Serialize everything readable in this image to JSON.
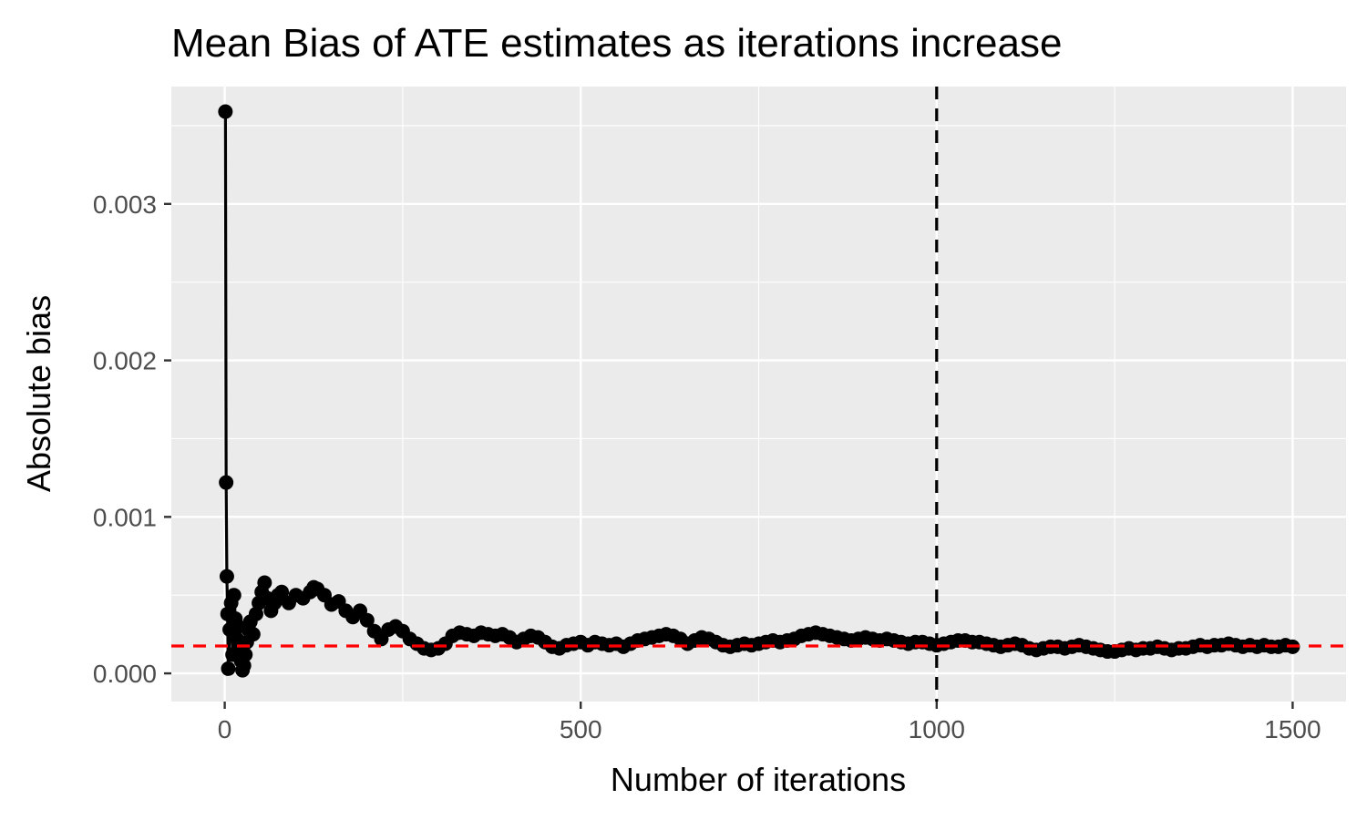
{
  "chart_data": {
    "type": "line",
    "title": "Mean Bias of ATE estimates as iterations increase",
    "xlabel": "Number of iterations",
    "ylabel": "Absolute bias",
    "xlim": [
      -75,
      1575
    ],
    "ylim": [
      -0.00018,
      0.00375
    ],
    "x_ticks": [
      {
        "value": 0,
        "label": "0"
      },
      {
        "value": 500,
        "label": "500"
      },
      {
        "value": 1000,
        "label": "1000"
      },
      {
        "value": 1500,
        "label": "1500"
      }
    ],
    "y_ticks": [
      {
        "value": 0.0,
        "label": "0.000"
      },
      {
        "value": 0.001,
        "label": "0.001"
      },
      {
        "value": 0.002,
        "label": "0.002"
      },
      {
        "value": 0.003,
        "label": "0.003"
      }
    ],
    "grid": true,
    "markers": true,
    "reference_lines": [
      {
        "orientation": "vertical",
        "value": 1000,
        "color": "#000000",
        "style": "dashed"
      },
      {
        "orientation": "horizontal",
        "value": 0.000175,
        "color": "#ff0000",
        "style": "dashed"
      }
    ],
    "series": [
      {
        "color": "#000000",
        "points": [
          [
            1,
            0.00359
          ],
          [
            2,
            0.00122
          ],
          [
            3,
            0.00062
          ],
          [
            4,
            0.00038
          ],
          [
            5,
            3e-05
          ],
          [
            7,
            0.00028
          ],
          [
            9,
            0.00045
          ],
          [
            11,
            0.00012
          ],
          [
            13,
            0.0005
          ],
          [
            15,
            0.00035
          ],
          [
            17,
            0.00022
          ],
          [
            19,
            0.0003
          ],
          [
            21,
            0.00015
          ],
          [
            23,
            8e-05
          ],
          [
            25,
            2e-05
          ],
          [
            27,
            5e-05
          ],
          [
            29,
            0.00012
          ],
          [
            31,
            0.0002
          ],
          [
            33,
            0.00028
          ],
          [
            36,
            0.00033
          ],
          [
            40,
            0.00025
          ],
          [
            44,
            0.00038
          ],
          [
            48,
            0.00045
          ],
          [
            52,
            0.00052
          ],
          [
            56,
            0.00058
          ],
          [
            60,
            0.00048
          ],
          [
            65,
            0.0004
          ],
          [
            70,
            0.00045
          ],
          [
            75,
            0.0005
          ],
          [
            80,
            0.00052
          ],
          [
            90,
            0.00045
          ],
          [
            100,
            0.0005
          ],
          [
            110,
            0.00048
          ],
          [
            120,
            0.00052
          ],
          [
            125,
            0.00055
          ],
          [
            130,
            0.00054
          ],
          [
            140,
            0.0005
          ],
          [
            150,
            0.00044
          ],
          [
            160,
            0.00046
          ],
          [
            170,
            0.0004
          ],
          [
            180,
            0.00036
          ],
          [
            190,
            0.0004
          ],
          [
            200,
            0.00034
          ],
          [
            210,
            0.00027
          ],
          [
            220,
            0.00022
          ],
          [
            230,
            0.00028
          ],
          [
            240,
            0.0003
          ],
          [
            250,
            0.00027
          ],
          [
            260,
            0.00022
          ],
          [
            270,
            0.00019
          ],
          [
            280,
            0.00016
          ],
          [
            290,
            0.00015
          ],
          [
            300,
            0.00016
          ],
          [
            310,
            0.00019
          ],
          [
            320,
            0.00024
          ],
          [
            330,
            0.00026
          ],
          [
            340,
            0.00025
          ],
          [
            350,
            0.00024
          ],
          [
            360,
            0.00026
          ],
          [
            370,
            0.00025
          ],
          [
            380,
            0.00024
          ],
          [
            390,
            0.00025
          ],
          [
            400,
            0.00023
          ],
          [
            410,
            0.0002
          ],
          [
            420,
            0.00022
          ],
          [
            430,
            0.00024
          ],
          [
            440,
            0.00023
          ],
          [
            450,
            0.0002
          ],
          [
            460,
            0.00017
          ],
          [
            470,
            0.00016
          ],
          [
            480,
            0.00018
          ],
          [
            490,
            0.00019
          ],
          [
            500,
            0.0002
          ],
          [
            510,
            0.00018
          ],
          [
            520,
            0.0002
          ],
          [
            530,
            0.00019
          ],
          [
            540,
            0.00018
          ],
          [
            550,
            0.00019
          ],
          [
            560,
            0.00017
          ],
          [
            570,
            0.00019
          ],
          [
            580,
            0.00021
          ],
          [
            590,
            0.00022
          ],
          [
            600,
            0.00023
          ],
          [
            610,
            0.00024
          ],
          [
            620,
            0.00025
          ],
          [
            630,
            0.00024
          ],
          [
            640,
            0.00022
          ],
          [
            650,
            0.00019
          ],
          [
            660,
            0.00021
          ],
          [
            670,
            0.00023
          ],
          [
            680,
            0.00022
          ],
          [
            690,
            0.0002
          ],
          [
            700,
            0.00018
          ],
          [
            710,
            0.00017
          ],
          [
            720,
            0.00018
          ],
          [
            730,
            0.00019
          ],
          [
            740,
            0.00018
          ],
          [
            750,
            0.00019
          ],
          [
            760,
            0.0002
          ],
          [
            770,
            0.00021
          ],
          [
            780,
            0.0002
          ],
          [
            790,
            0.00021
          ],
          [
            800,
            0.00022
          ],
          [
            810,
            0.00024
          ],
          [
            820,
            0.00025
          ],
          [
            830,
            0.00026
          ],
          [
            840,
            0.00025
          ],
          [
            850,
            0.00024
          ],
          [
            860,
            0.00023
          ],
          [
            870,
            0.00022
          ],
          [
            880,
            0.00021
          ],
          [
            890,
            0.00022
          ],
          [
            900,
            0.00023
          ],
          [
            910,
            0.00022
          ],
          [
            920,
            0.00021
          ],
          [
            930,
            0.00022
          ],
          [
            940,
            0.00021
          ],
          [
            950,
            0.0002
          ],
          [
            960,
            0.00019
          ],
          [
            970,
            0.0002
          ],
          [
            980,
            0.0002
          ],
          [
            990,
            0.00019
          ],
          [
            1000,
            0.00018
          ],
          [
            1010,
            0.00019
          ],
          [
            1020,
            0.0002
          ],
          [
            1030,
            0.00021
          ],
          [
            1040,
            0.00021
          ],
          [
            1050,
            0.0002
          ],
          [
            1060,
            0.0002
          ],
          [
            1070,
            0.00019
          ],
          [
            1080,
            0.00018
          ],
          [
            1090,
            0.00017
          ],
          [
            1100,
            0.00018
          ],
          [
            1110,
            0.00019
          ],
          [
            1120,
            0.00018
          ],
          [
            1130,
            0.00016
          ],
          [
            1140,
            0.00015
          ],
          [
            1150,
            0.00016
          ],
          [
            1160,
            0.00017
          ],
          [
            1170,
            0.00017
          ],
          [
            1180,
            0.00016
          ],
          [
            1190,
            0.00017
          ],
          [
            1200,
            0.00018
          ],
          [
            1210,
            0.00017
          ],
          [
            1220,
            0.00016
          ],
          [
            1230,
            0.00015
          ],
          [
            1240,
            0.00014
          ],
          [
            1250,
            0.00014
          ],
          [
            1260,
            0.00015
          ],
          [
            1270,
            0.00016
          ],
          [
            1280,
            0.00015
          ],
          [
            1290,
            0.00016
          ],
          [
            1300,
            0.00016
          ],
          [
            1310,
            0.00017
          ],
          [
            1320,
            0.00016
          ],
          [
            1330,
            0.00015
          ],
          [
            1340,
            0.00016
          ],
          [
            1350,
            0.00016
          ],
          [
            1360,
            0.00017
          ],
          [
            1370,
            0.00018
          ],
          [
            1380,
            0.00017
          ],
          [
            1390,
            0.00018
          ],
          [
            1400,
            0.00018
          ],
          [
            1410,
            0.00019
          ],
          [
            1420,
            0.00018
          ],
          [
            1430,
            0.00017
          ],
          [
            1440,
            0.00018
          ],
          [
            1450,
            0.00017
          ],
          [
            1460,
            0.00018
          ],
          [
            1470,
            0.00017
          ],
          [
            1480,
            0.00017
          ],
          [
            1490,
            0.00018
          ],
          [
            1500,
            0.00017
          ]
        ]
      }
    ]
  }
}
